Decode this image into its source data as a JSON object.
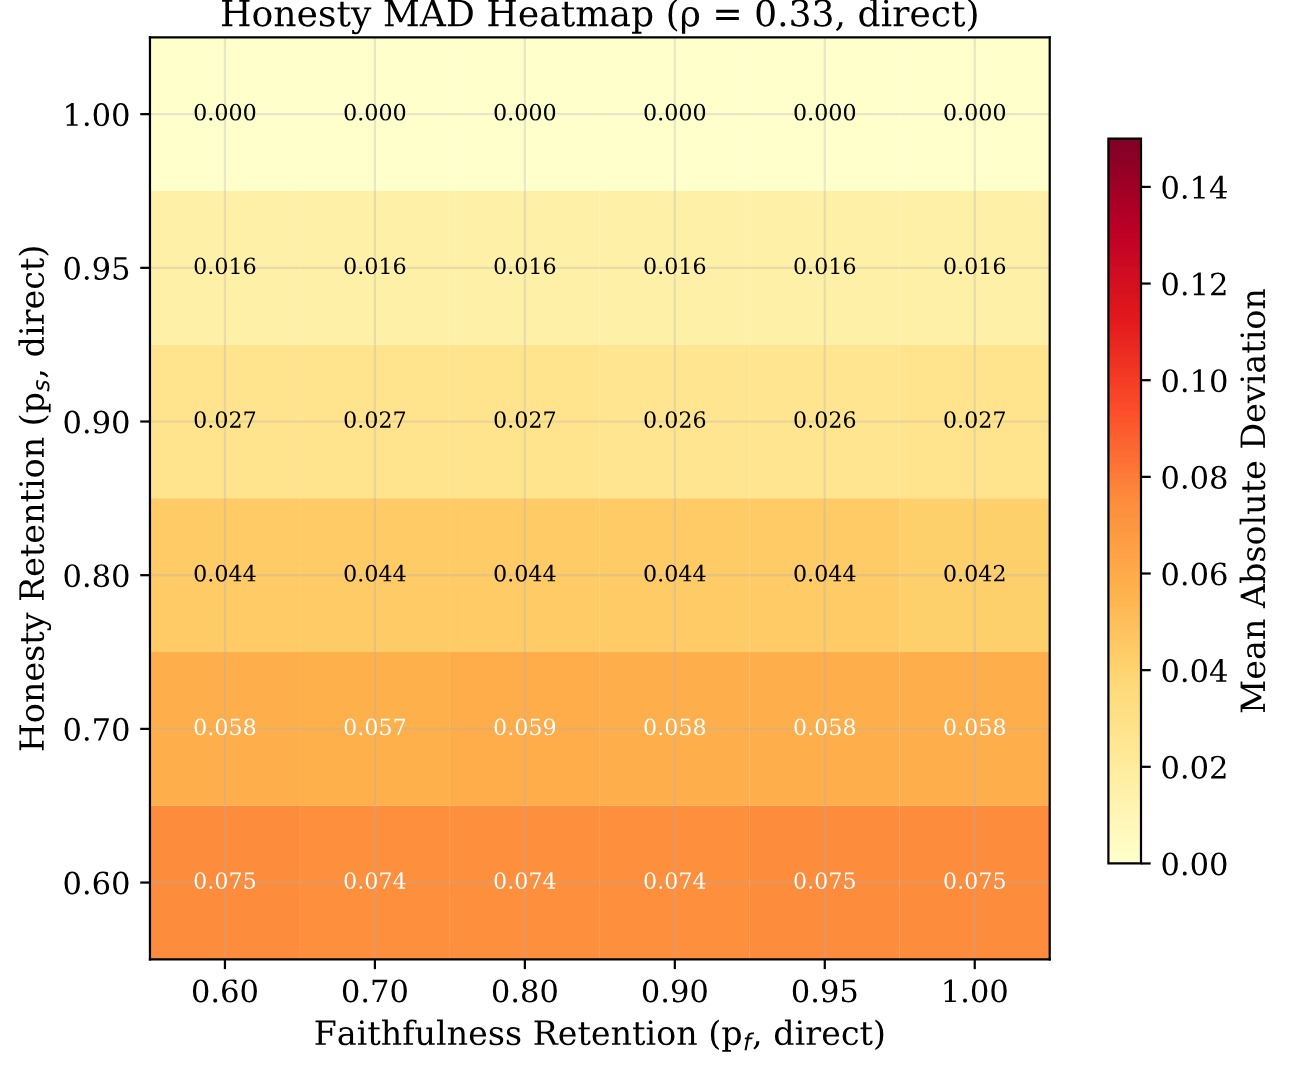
{
  "chart_data": {
    "type": "heatmap",
    "title": "Honesty MAD Heatmap (ρ = 0.33, direct)",
    "xlabel": "Faithfulness Retention (p$_{f}$, direct)",
    "ylabel": "Honesty Retention (p$_{s}$, direct)",
    "clabel": "Mean Absolute Deviation",
    "categories": [
      "0.60",
      "0.70",
      "0.80",
      "0.90",
      "0.95",
      "1.00"
    ],
    "y_categories": [
      "1.00",
      "0.95",
      "0.90",
      "0.80",
      "0.70",
      "0.60"
    ],
    "cells": [
      [
        0.0,
        0.0,
        0.0,
        0.0,
        0.0,
        0.0
      ],
      [
        0.016,
        0.016,
        0.016,
        0.016,
        0.016,
        0.016
      ],
      [
        0.027,
        0.027,
        0.027,
        0.026,
        0.026,
        0.027
      ],
      [
        0.044,
        0.044,
        0.044,
        0.044,
        0.044,
        0.042
      ],
      [
        0.058,
        0.057,
        0.059,
        0.058,
        0.058,
        0.058
      ],
      [
        0.075,
        0.074,
        0.074,
        0.074,
        0.075,
        0.075
      ]
    ],
    "cell_labels": [
      [
        "0.000",
        "0.000",
        "0.000",
        "0.000",
        "0.000",
        "0.000"
      ],
      [
        "0.016",
        "0.016",
        "0.016",
        "0.016",
        "0.016",
        "0.016"
      ],
      [
        "0.027",
        "0.027",
        "0.027",
        "0.026",
        "0.026",
        "0.027"
      ],
      [
        "0.044",
        "0.044",
        "0.044",
        "0.044",
        "0.044",
        "0.042"
      ],
      [
        "0.058",
        "0.057",
        "0.059",
        "0.058",
        "0.058",
        "0.058"
      ],
      [
        "0.075",
        "0.074",
        "0.074",
        "0.074",
        "0.075",
        "0.075"
      ]
    ],
    "clim": [
      0,
      0.15
    ],
    "cticks": [
      "0.00",
      {
        "value": 0.02,
        "label": "0.02"
      },
      {
        "value": 0.04,
        "label": "0.04"
      },
      {
        "value": 0.06,
        "label": "0.06"
      },
      {
        "value": 0.08,
        "label": "0.08"
      },
      {
        "value": 0.1,
        "label": "0.10"
      },
      {
        "value": 0.12,
        "label": "0.12"
      },
      {
        "value": 0.14,
        "label": "0.14"
      }
    ],
    "grid": true
  }
}
